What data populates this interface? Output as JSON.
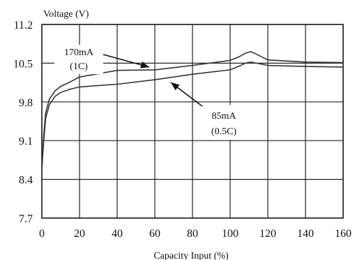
{
  "chart_data": {
    "type": "line",
    "title": "",
    "xlabel": "Capacity Input (%)",
    "ylabel": "Voltage (V)",
    "xlim": [
      0,
      160
    ],
    "ylim": [
      7.7,
      11.2
    ],
    "x_ticks": [
      "0",
      "20",
      "40",
      "60",
      "80",
      "100",
      "120",
      "140",
      "160"
    ],
    "y_ticks": [
      "11.2",
      "10.5",
      "9.8",
      "9.1",
      "8.4",
      "7.7"
    ],
    "grid": true,
    "series": [
      {
        "name": "170mA (1C)",
        "x": [
          0,
          1,
          2,
          4,
          7,
          10,
          15,
          20,
          40,
          60,
          80,
          100,
          105,
          108,
          111,
          114,
          120,
          140,
          160
        ],
        "y": [
          8.6,
          9.2,
          9.6,
          9.85,
          10.0,
          10.08,
          10.16,
          10.25,
          10.37,
          10.38,
          10.46,
          10.55,
          10.62,
          10.68,
          10.71,
          10.66,
          10.56,
          10.52,
          10.51
        ]
      },
      {
        "name": "85mA (0.5C)",
        "x": [
          0,
          1,
          2,
          4,
          7,
          10,
          15,
          20,
          40,
          60,
          80,
          100,
          105,
          108,
          111,
          114,
          120,
          140,
          160
        ],
        "y": [
          8.6,
          9.1,
          9.5,
          9.75,
          9.9,
          9.97,
          10.03,
          10.07,
          10.12,
          10.2,
          10.3,
          10.38,
          10.45,
          10.5,
          10.52,
          10.5,
          10.46,
          10.44,
          10.43
        ]
      }
    ],
    "annotations": [
      {
        "line1": "170mA",
        "line2": "(1C)"
      },
      {
        "line1": "85mA",
        "line2": "(0.5C)"
      }
    ]
  }
}
